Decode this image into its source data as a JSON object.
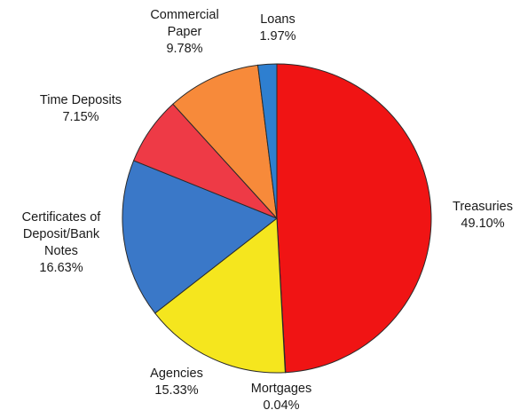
{
  "chart_data": {
    "type": "pie",
    "title": "",
    "start_angle_deg": 0,
    "direction": "clockwise",
    "slices": [
      {
        "name": "Treasuries",
        "lines": [
          "Treasuries",
          "49.10%"
        ],
        "value": 49.1,
        "color": "#f01414"
      },
      {
        "name": "Mortgages",
        "lines": [
          "Mortgages",
          "0.04%"
        ],
        "value": 0.04,
        "color": "#f5e61e"
      },
      {
        "name": "Agencies",
        "lines": [
          "Agencies",
          "15.33%"
        ],
        "value": 15.33,
        "color": "#f5e61e"
      },
      {
        "name": "Certificates of Deposit/Bank Notes",
        "lines": [
          "Certificates of",
          "Deposit/Bank",
          "Notes",
          "16.63%"
        ],
        "value": 16.63,
        "color": "#3a78c8"
      },
      {
        "name": "Time Deposits",
        "lines": [
          "Time Deposits",
          "7.15%"
        ],
        "value": 7.15,
        "color": "#ee3a46"
      },
      {
        "name": "Commercial Paper",
        "lines": [
          "Commercial",
          "Paper",
          "9.78%"
        ],
        "value": 9.78,
        "color": "#f78a3a"
      },
      {
        "name": "Loans",
        "lines": [
          "Loans",
          "1.97%"
        ],
        "value": 1.97,
        "color": "#2e7fd0"
      }
    ]
  }
}
